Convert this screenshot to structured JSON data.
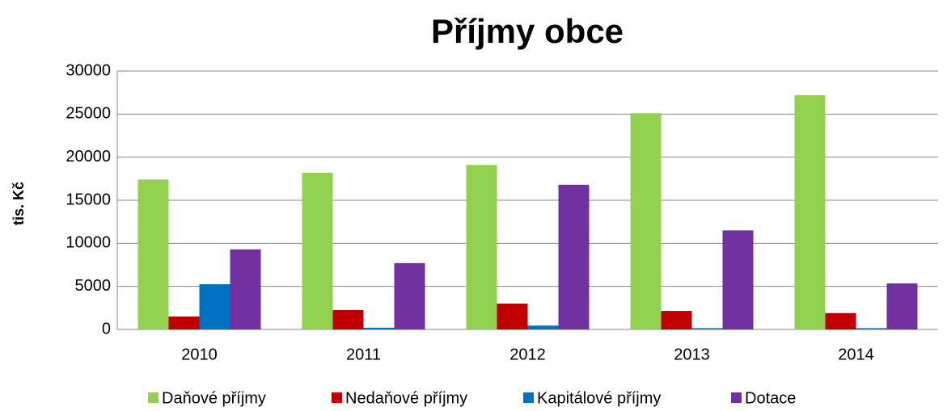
{
  "chart_data": {
    "type": "bar",
    "title": "Příjmy obce",
    "y_label": "tis. Kč",
    "categories": [
      "2010",
      "2011",
      "2012",
      "2013",
      "2014"
    ],
    "series": [
      {
        "name": "Daňové příjmy",
        "color": "#92d050",
        "values": [
          17400,
          18200,
          19100,
          25100,
          27200
        ]
      },
      {
        "name": "Nedaňové příjmy",
        "color": "#c00000",
        "values": [
          1500,
          2250,
          3000,
          2150,
          1900
        ]
      },
      {
        "name": "Kapitálové příjmy",
        "color": "#0070c0",
        "values": [
          5250,
          200,
          450,
          150,
          150
        ]
      },
      {
        "name": "Dotace",
        "color": "#7030a0",
        "values": [
          9300,
          7700,
          16800,
          11500,
          5350
        ]
      }
    ],
    "ylim": [
      0,
      30000
    ],
    "yticks": [
      0,
      5000,
      10000,
      15000,
      20000,
      25000,
      30000
    ],
    "grid": true
  }
}
